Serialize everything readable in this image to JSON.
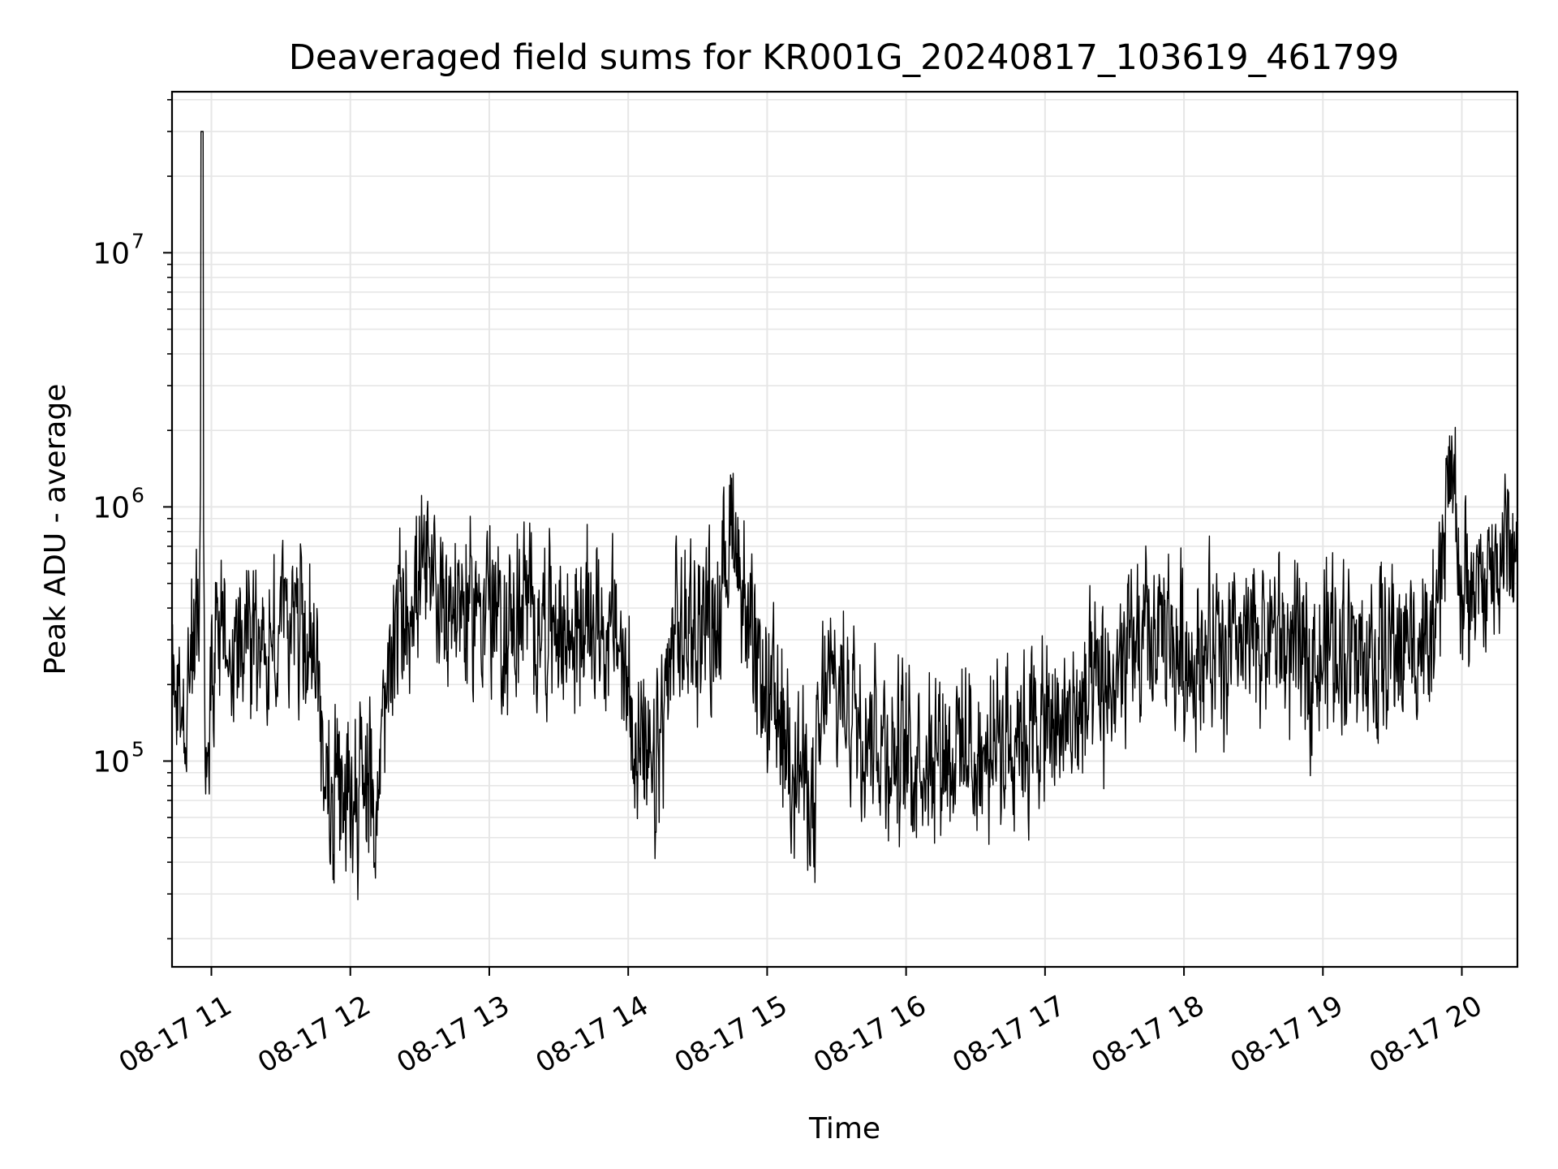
{
  "chart_data": {
    "type": "line",
    "title": "Deaveraged field sums for KR001G_20240817_103619_461799",
    "xlabel": "Time",
    "ylabel": "Peak ADU - average",
    "yscale": "log",
    "ylim": [
      15500,
      43000000
    ],
    "xlim": [
      "2024-08-17 10:43",
      "2024-08-17 20:24"
    ],
    "grid": true,
    "line_color": "#000000",
    "grid_color": "#e6e6e6",
    "x_ticks": [
      "2024-08-17 11:00",
      "2024-08-17 12:00",
      "2024-08-17 13:00",
      "2024-08-17 14:00",
      "2024-08-17 15:00",
      "2024-08-17 16:00",
      "2024-08-17 17:00",
      "2024-08-17 18:00",
      "2024-08-17 19:00",
      "2024-08-17 20:00"
    ],
    "x_tick_labels": [
      "08-17 11",
      "08-17 12",
      "08-17 13",
      "08-17 14",
      "08-17 15",
      "08-17 16",
      "08-17 17",
      "08-17 18",
      "08-17 19",
      "08-17 20"
    ],
    "y_ticks": [
      {
        "value": 100000,
        "base": "10",
        "exponent": "5"
      },
      {
        "value": 1000000,
        "base": "10",
        "exponent": "6"
      },
      {
        "value": 10000000,
        "base": "10",
        "exponent": "7"
      }
    ],
    "series": [
      {
        "x": [
          "2024-08-17 10:43",
          "2024-08-17 10:50",
          "2024-08-17 10:55",
          "2024-08-17 10:56",
          "2024-08-17 10:57",
          "2024-08-17 11:05",
          "2024-08-17 11:15",
          "2024-08-17 11:25",
          "2024-08-17 11:35",
          "2024-08-17 11:45",
          "2024-08-17 11:52",
          "2024-08-17 11:58",
          "2024-08-17 12:05",
          "2024-08-17 12:10",
          "2024-08-17 12:20",
          "2024-08-17 12:30",
          "2024-08-17 12:40",
          "2024-08-17 12:50",
          "2024-08-17 13:00",
          "2024-08-17 13:05",
          "2024-08-17 13:15",
          "2024-08-17 13:25",
          "2024-08-17 13:35",
          "2024-08-17 13:45",
          "2024-08-17 13:55",
          "2024-08-17 14:05",
          "2024-08-17 14:10",
          "2024-08-17 14:20",
          "2024-08-17 14:30",
          "2024-08-17 14:40",
          "2024-08-17 14:45",
          "2024-08-17 14:55",
          "2024-08-17 15:05",
          "2024-08-17 15:15",
          "2024-08-17 15:20",
          "2024-08-17 15:25",
          "2024-08-17 15:35",
          "2024-08-17 15:45",
          "2024-08-17 15:55",
          "2024-08-17 16:05",
          "2024-08-17 16:15",
          "2024-08-17 16:25",
          "2024-08-17 16:35",
          "2024-08-17 16:40",
          "2024-08-17 16:50",
          "2024-08-17 17:00",
          "2024-08-17 17:10",
          "2024-08-17 17:20",
          "2024-08-17 17:30",
          "2024-08-17 17:40",
          "2024-08-17 17:50",
          "2024-08-17 18:00",
          "2024-08-17 18:10",
          "2024-08-17 18:20",
          "2024-08-17 18:30",
          "2024-08-17 18:40",
          "2024-08-17 18:50",
          "2024-08-17 19:00",
          "2024-08-17 19:10",
          "2024-08-17 19:20",
          "2024-08-17 19:30",
          "2024-08-17 19:40",
          "2024-08-17 19:48",
          "2024-08-17 19:55",
          "2024-08-17 20:00",
          "2024-08-17 20:05",
          "2024-08-17 20:10",
          "2024-08-17 20:15",
          "2024-08-17 20:20",
          "2024-08-17 20:24"
        ],
        "y": [
          220000,
          180000,
          400000,
          30000000,
          150000,
          350000,
          300000,
          280000,
          400000,
          250000,
          60000,
          70000,
          90000,
          60000,
          350000,
          500000,
          450000,
          400000,
          450000,
          300000,
          400000,
          350000,
          300000,
          400000,
          300000,
          120000,
          70000,
          300000,
          350000,
          400000,
          1000000,
          200000,
          150000,
          90000,
          60000,
          200000,
          180000,
          150000,
          100000,
          110000,
          120000,
          110000,
          100000,
          120000,
          140000,
          130000,
          140000,
          170000,
          200000,
          280000,
          300000,
          260000,
          280000,
          250000,
          300000,
          320000,
          250000,
          280000,
          300000,
          250000,
          280000,
          300000,
          280000,
          1500000,
          500000,
          400000,
          500000,
          600000,
          700000,
          600000
        ]
      }
    ]
  }
}
